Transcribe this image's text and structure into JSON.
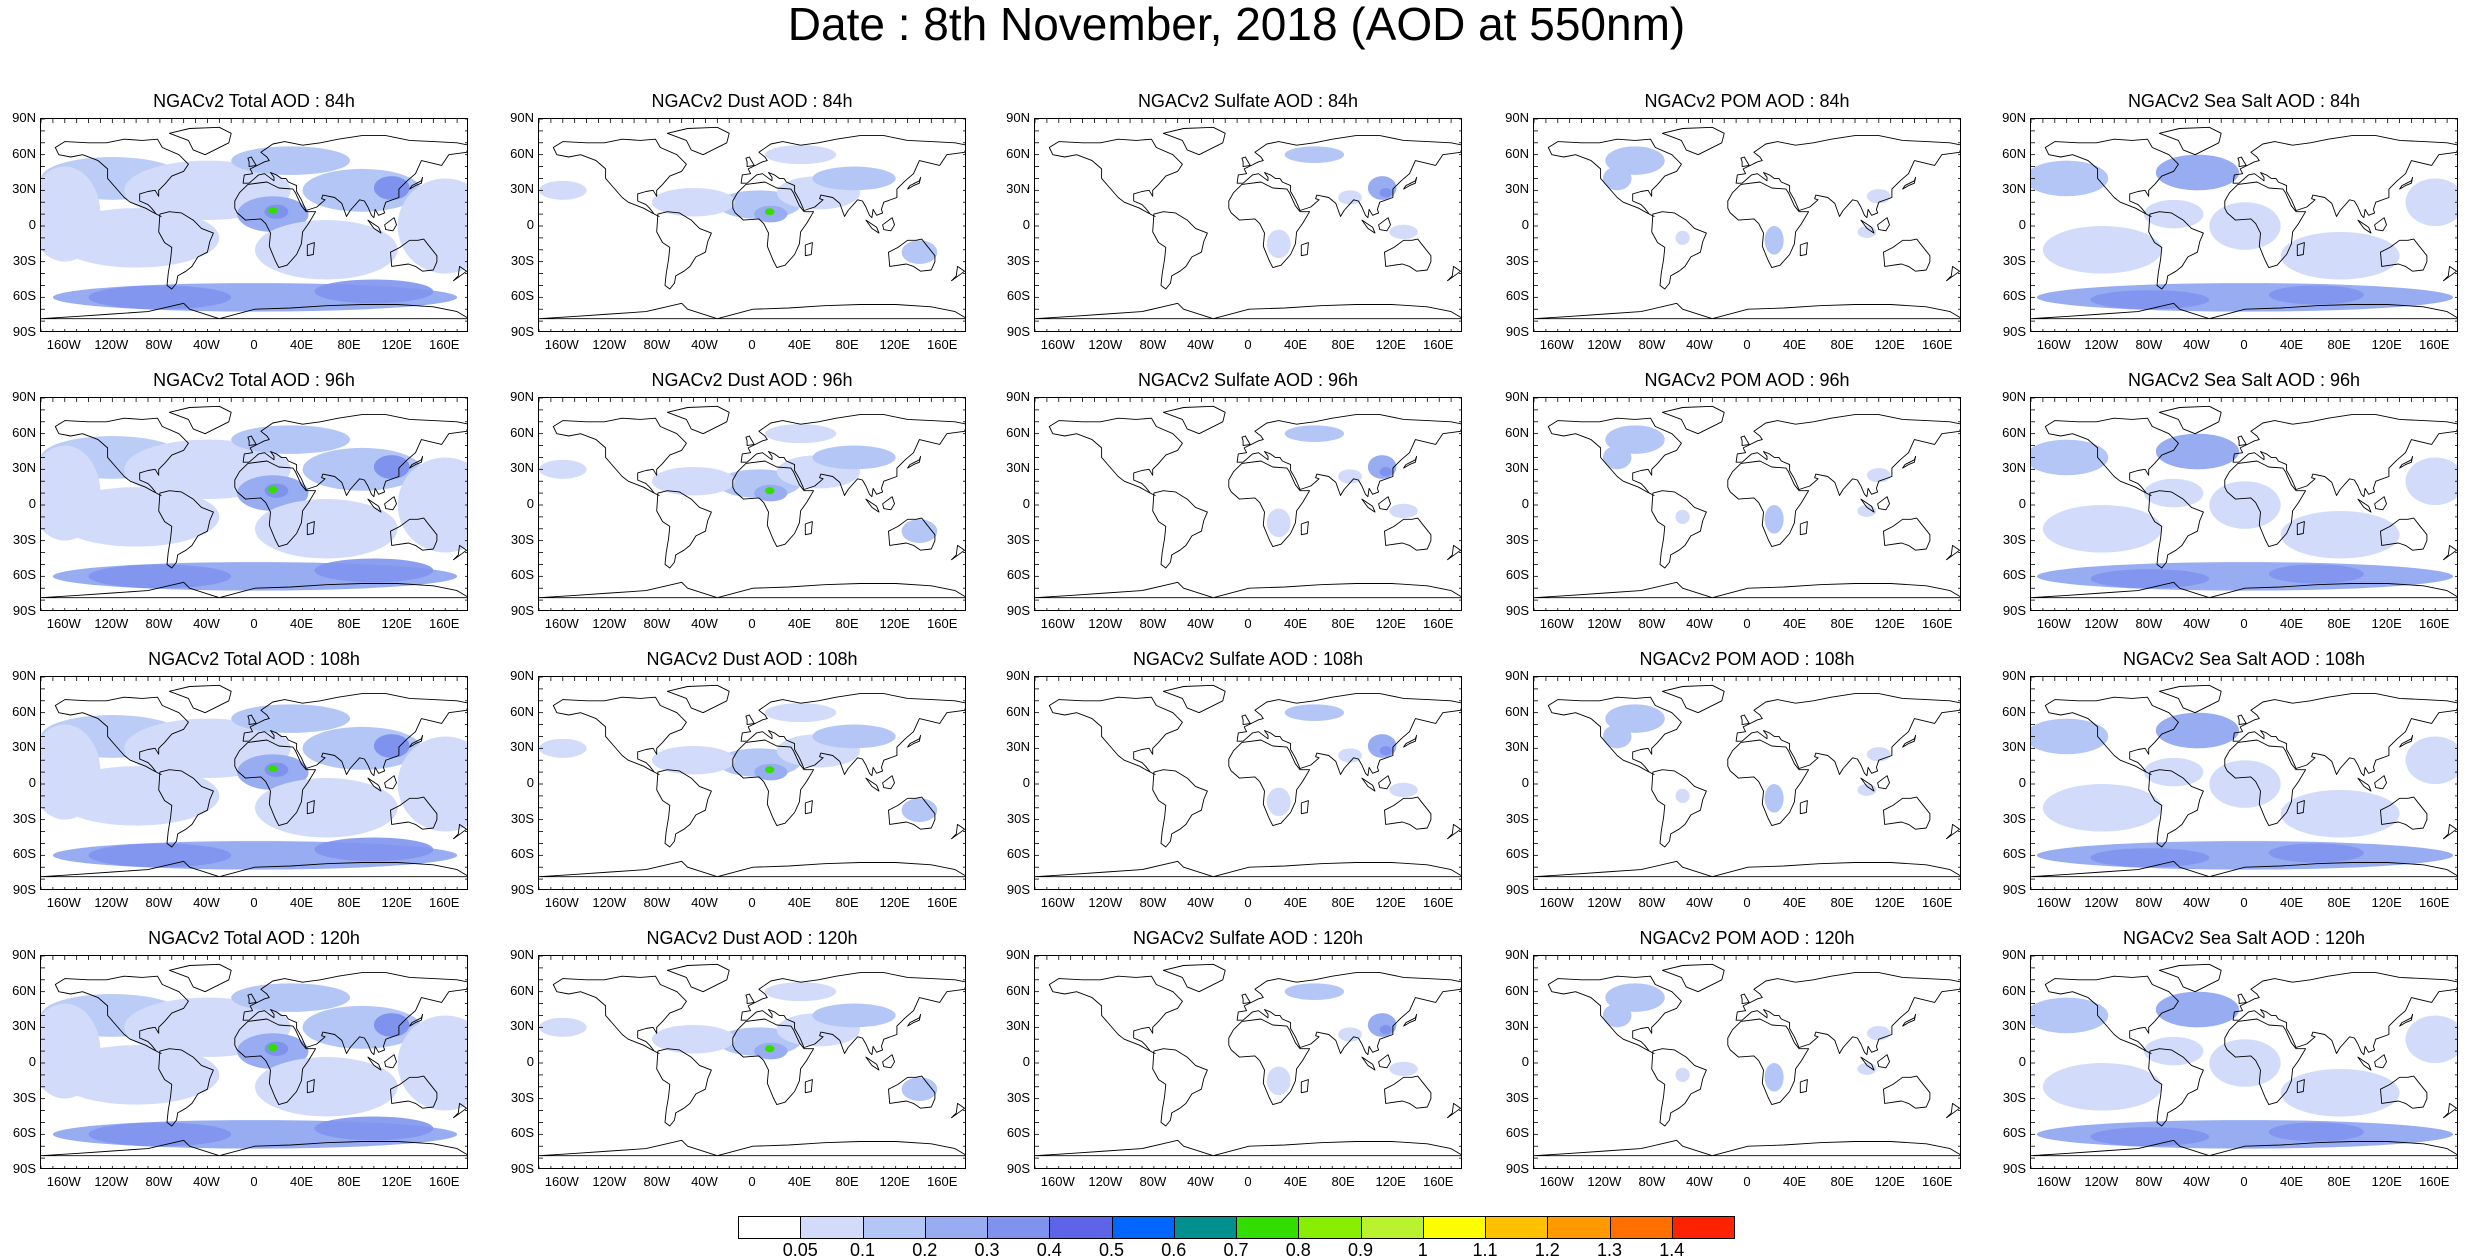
{
  "title": "Date : 8th November, 2018 (AOD at 550nm)",
  "lat_labels": [
    "90N",
    "60N",
    "30N",
    "0",
    "30S",
    "60S",
    "90S"
  ],
  "lon_labels": [
    "160W",
    "120W",
    "80W",
    "40W",
    "0",
    "40E",
    "80E",
    "120E",
    "160E"
  ],
  "panels": [
    {
      "title": "NGACv2 Total AOD : 84h",
      "species": "total",
      "lead_hours": 84
    },
    {
      "title": "NGACv2 Dust AOD : 84h",
      "species": "dust",
      "lead_hours": 84
    },
    {
      "title": "NGACv2 Sulfate AOD : 84h",
      "species": "sulfate",
      "lead_hours": 84
    },
    {
      "title": "NGACv2 POM AOD : 84h",
      "species": "pom",
      "lead_hours": 84
    },
    {
      "title": "NGACv2 Sea Salt AOD : 84h",
      "species": "seasalt",
      "lead_hours": 84
    },
    {
      "title": "NGACv2 Total AOD : 96h",
      "species": "total",
      "lead_hours": 96
    },
    {
      "title": "NGACv2 Dust AOD : 96h",
      "species": "dust",
      "lead_hours": 96
    },
    {
      "title": "NGACv2 Sulfate AOD : 96h",
      "species": "sulfate",
      "lead_hours": 96
    },
    {
      "title": "NGACv2 POM AOD : 96h",
      "species": "pom",
      "lead_hours": 96
    },
    {
      "title": "NGACv2 Sea Salt AOD : 96h",
      "species": "seasalt",
      "lead_hours": 96
    },
    {
      "title": "NGACv2 Total AOD : 108h",
      "species": "total",
      "lead_hours": 108
    },
    {
      "title": "NGACv2 Dust AOD : 108h",
      "species": "dust",
      "lead_hours": 108
    },
    {
      "title": "NGACv2 Sulfate AOD : 108h",
      "species": "sulfate",
      "lead_hours": 108
    },
    {
      "title": "NGACv2 POM AOD : 108h",
      "species": "pom",
      "lead_hours": 108
    },
    {
      "title": "NGACv2 Sea Salt AOD : 108h",
      "species": "seasalt",
      "lead_hours": 108
    },
    {
      "title": "NGACv2 Total AOD : 120h",
      "species": "total",
      "lead_hours": 120
    },
    {
      "title": "NGACv2 Dust AOD : 120h",
      "species": "dust",
      "lead_hours": 120
    },
    {
      "title": "NGACv2 Sulfate AOD : 120h",
      "species": "sulfate",
      "lead_hours": 120
    },
    {
      "title": "NGACv2 POM AOD : 120h",
      "species": "pom",
      "lead_hours": 120
    },
    {
      "title": "NGACv2 Sea Salt  AOD : 120h",
      "species": "seasalt",
      "lead_hours": 120
    }
  ],
  "colorbar": {
    "levels": [
      "0.05",
      "0.1",
      "0.2",
      "0.3",
      "0.4",
      "0.5",
      "0.6",
      "0.7",
      "0.8",
      "0.9",
      "1",
      "1.1",
      "1.2",
      "1.3",
      "1.4"
    ],
    "colors": [
      "#ffffff",
      "#d2dcfa",
      "#b4c6f6",
      "#98acf2",
      "#7f93ee",
      "#5e64e8",
      "#0066ff",
      "#009090",
      "#33dd00",
      "#88ee00",
      "#bbf230",
      "#ffff00",
      "#ffc000",
      "#ff9900",
      "#ff7000",
      "#ff2200"
    ]
  }
}
